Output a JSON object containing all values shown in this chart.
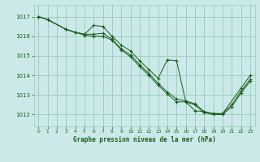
{
  "background_color": "#cbe9e9",
  "grid_color": "#99ccbb",
  "line_color": "#1a5c1a",
  "title": "Graphe pression niveau de la mer (hPa)",
  "xlim": [
    -0.5,
    23.5
  ],
  "ylim": [
    1011.4,
    1017.6
  ],
  "yticks": [
    1012,
    1013,
    1014,
    1015,
    1016,
    1017
  ],
  "xticks": [
    0,
    1,
    2,
    3,
    4,
    5,
    6,
    7,
    8,
    9,
    10,
    11,
    12,
    13,
    14,
    15,
    16,
    17,
    18,
    19,
    20,
    21,
    22,
    23
  ],
  "series": [
    {
      "x": [
        0,
        1,
        3,
        4,
        5,
        6,
        7,
        8,
        9,
        10,
        11,
        12,
        13,
        14,
        15,
        16,
        17,
        18,
        19,
        20,
        22,
        23
      ],
      "y": [
        1017.0,
        1016.85,
        1016.35,
        1016.2,
        1016.1,
        1016.55,
        1016.5,
        1016.0,
        1015.55,
        1015.25,
        1014.75,
        1014.3,
        1013.85,
        1014.8,
        1014.75,
        1012.65,
        1012.2,
        1012.15,
        1012.05,
        1012.05,
        1013.35,
        1014.0
      ]
    },
    {
      "x": [
        0,
        1,
        3,
        4,
        5,
        6,
        7,
        8,
        9,
        10,
        11,
        12,
        13,
        14,
        15,
        16,
        17,
        18,
        19,
        20,
        21,
        22,
        23
      ],
      "y": [
        1017.0,
        1016.85,
        1016.35,
        1016.2,
        1016.1,
        1016.1,
        1016.15,
        1015.85,
        1015.35,
        1015.05,
        1014.55,
        1014.1,
        1013.6,
        1013.15,
        1012.8,
        1012.7,
        1012.55,
        1012.15,
        1012.05,
        1012.05,
        1012.5,
        1013.2,
        1013.8
      ]
    },
    {
      "x": [
        0,
        1,
        3,
        4,
        5,
        6,
        7,
        8,
        9,
        10,
        11,
        12,
        13,
        14,
        15,
        16,
        17,
        18,
        19,
        20,
        21,
        22,
        23
      ],
      "y": [
        1017.0,
        1016.85,
        1016.35,
        1016.2,
        1016.05,
        1016.0,
        1016.0,
        1015.8,
        1015.3,
        1014.95,
        1014.45,
        1014.0,
        1013.5,
        1013.05,
        1012.65,
        1012.65,
        1012.5,
        1012.1,
        1012.0,
        1012.0,
        1012.4,
        1013.1,
        1013.7
      ]
    }
  ]
}
